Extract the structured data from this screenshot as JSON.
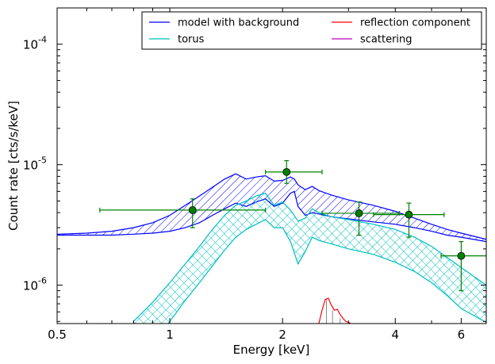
{
  "chart_data": {
    "type": "line",
    "xlabel": "Energy [keV]",
    "ylabel": "Count rate [cts/s/keV]",
    "xscale": "log",
    "yscale": "log",
    "xlim": [
      0.5,
      7.0
    ],
    "ylim": [
      4.8e-07,
      0.0002
    ],
    "x_ticks": [
      0.5,
      1,
      2,
      4,
      6
    ],
    "x_tick_labels": [
      "0.5",
      "1",
      "2",
      "4",
      "6"
    ],
    "y_ticks": [
      1e-06,
      1e-05,
      0.0001
    ],
    "y_tick_labels": [
      {
        "base": "10",
        "exp": "-6"
      },
      {
        "base": "10",
        "exp": "-5"
      },
      {
        "base": "10",
        "exp": "-4"
      }
    ],
    "grid": false,
    "legend_position": "top-right",
    "legend": [
      {
        "name": "model with background",
        "color": "#0000ff"
      },
      {
        "name": "reflection component",
        "color": "#ff0000"
      },
      {
        "name": "torus",
        "color": "#00bfbf"
      },
      {
        "name": "scattering",
        "color": "#bf00bf"
      }
    ],
    "data_points": [
      {
        "x": 1.15,
        "y": 4.2e-06,
        "xerr": [
          0.65,
          1.8
        ],
        "yerr": [
          3e-06,
          5.2e-06
        ]
      },
      {
        "x": 2.05,
        "y": 8.7e-06,
        "xerr": [
          1.8,
          2.55
        ],
        "yerr": [
          7e-06,
          1.08e-05
        ]
      },
      {
        "x": 3.2,
        "y": 3.95e-06,
        "xerr": [
          2.55,
          4.1
        ],
        "yerr": [
          2.6e-06,
          4.9e-06
        ]
      },
      {
        "x": 4.35,
        "y": 3.85e-06,
        "xerr": [
          3.5,
          5.4
        ],
        "yerr": [
          2.5e-06,
          4.8e-06
        ]
      },
      {
        "x": 6.0,
        "y": 1.75e-06,
        "xerr": [
          5.3,
          7.0
        ],
        "yerr": [
          9e-07,
          2.3e-06
        ]
      }
    ],
    "series": [
      {
        "name": "model with background",
        "color": "#0000ff",
        "band": true,
        "x": [
          0.5,
          0.6,
          0.7,
          0.8,
          0.9,
          1.0,
          1.1,
          1.2,
          1.3,
          1.4,
          1.5,
          1.6,
          1.7,
          1.8,
          1.9,
          2.0,
          2.1,
          2.15,
          2.2,
          2.3,
          2.4,
          2.5,
          2.7,
          3.0,
          3.5,
          4.0,
          4.5,
          5.0,
          5.5,
          6.0,
          7.0
        ],
        "upper": [
          2.65e-06,
          2.7e-06,
          2.8e-06,
          3e-06,
          3.3e-06,
          3.8e-06,
          4.6e-06,
          5.5e-06,
          6.5e-06,
          7.6e-06,
          8.4e-06,
          7.6e-06,
          7.9e-06,
          8.1e-06,
          7.3e-06,
          7.4e-06,
          7.9e-06,
          7.6e-06,
          6.8e-06,
          6.2e-06,
          6.6e-06,
          6.1e-06,
          5.6e-06,
          5.1e-06,
          4.6e-06,
          4.1e-06,
          3.6e-06,
          3.2e-06,
          2.9e-06,
          2.7e-06,
          2.4e-06
        ],
        "lower": [
          2.6e-06,
          2.6e-06,
          2.6e-06,
          2.65e-06,
          2.7e-06,
          2.8e-06,
          3e-06,
          3.3e-06,
          3.8e-06,
          4.3e-06,
          4.8e-06,
          4.5e-06,
          4.9e-06,
          5.2e-06,
          4.5e-06,
          4.8e-06,
          5.8e-06,
          6e-06,
          4.5e-06,
          3.8e-06,
          4e-06,
          3.9e-06,
          3.7e-06,
          3.55e-06,
          3.35e-06,
          3.2e-06,
          3e-06,
          2.8e-06,
          2.6e-06,
          2.5e-06,
          2.3e-06
        ]
      },
      {
        "name": "torus",
        "color": "#00bfbf",
        "band": true,
        "x": [
          0.8,
          0.9,
          1.0,
          1.1,
          1.2,
          1.3,
          1.4,
          1.5,
          1.6,
          1.7,
          1.8,
          1.9,
          2.0,
          2.1,
          2.2,
          2.3,
          2.4,
          2.5,
          2.7,
          3.0,
          3.5,
          4.0,
          4.5,
          5.0,
          5.5,
          6.0,
          7.0
        ],
        "upper": [
          5e-07,
          7.2e-07,
          1.05e-06,
          1.5e-06,
          2.1e-06,
          2.9e-06,
          3.8e-06,
          4.6e-06,
          5e-06,
          5.5e-06,
          5.8e-06,
          4.6e-06,
          4.9e-06,
          4.2e-06,
          3.4e-06,
          3.6e-06,
          4.3e-06,
          4e-06,
          3.7e-06,
          3.5e-06,
          3.2e-06,
          2.9e-06,
          2.5e-06,
          2.1e-06,
          1.7e-06,
          1.4e-06,
          1e-06
        ],
        "lower": [
          null,
          null,
          5e-07,
          7.5e-07,
          1.05e-06,
          1.45e-06,
          1.95e-06,
          2.5e-06,
          2.9e-06,
          3.2e-06,
          3.5e-06,
          3e-06,
          3e-06,
          2.3e-06,
          1.5e-06,
          1.9e-06,
          2.5e-06,
          2.35e-06,
          2.2e-06,
          2e-06,
          1.8e-06,
          1.55e-06,
          1.3e-06,
          1.05e-06,
          8.2e-07,
          6.4e-07,
          4.9e-07
        ],
        "lower_start_x": 0.98
      },
      {
        "name": "reflection component",
        "color": "#ff0000",
        "band": false,
        "x": [
          2.5,
          2.55,
          2.6,
          2.65,
          2.7,
          2.75,
          2.8,
          2.85,
          2.9,
          2.95,
          3.0,
          3.05
        ],
        "y": [
          4.8e-07,
          6.2e-07,
          7.6e-07,
          7.8e-07,
          6.8e-07,
          6.2e-07,
          6.3e-07,
          5.7e-07,
          5.3e-07,
          5e-07,
          4.9e-07,
          4.8e-07
        ]
      }
    ]
  }
}
